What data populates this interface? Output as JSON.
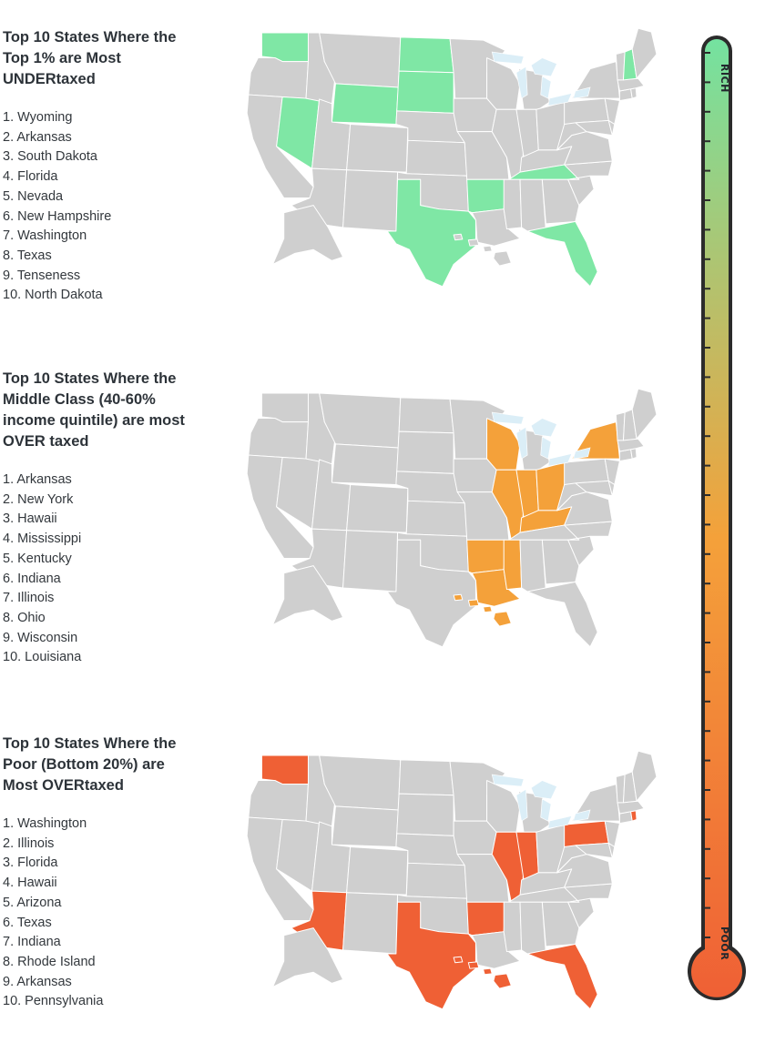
{
  "colors": {
    "land": "#cfcfcf",
    "border": "#ffffff",
    "lakes": "#dbeef7",
    "rich": "#7fe7a5",
    "middle": "#f4a13a",
    "poor": "#ef6035",
    "thermometer_top": "#74e2a0",
    "thermometer_mid": "#f4a13a",
    "thermometer_bottom": "#ef6035"
  },
  "thermometer": {
    "top_label": "RICH",
    "bottom_label": "POOR",
    "tick_count": 31
  },
  "sections": [
    {
      "title_lines": [
        "Top 10 States Where the",
        "Top 1% are Most",
        "UNDERtaxed"
      ],
      "list": [
        "1. Wyoming",
        "2. Arkansas",
        "3. South Dakota",
        "4. Florida",
        "5. Nevada",
        "6. New Hampshire",
        "7. Washington",
        "8. Texas",
        "9. Tenseness",
        "10. North Dakota"
      ],
      "highlight_color": "rich",
      "highlighted_states": [
        "WY",
        "AR",
        "SD",
        "FL",
        "NV",
        "NH",
        "WA",
        "TX",
        "TN",
        "ND"
      ]
    },
    {
      "title_lines": [
        "Top 10 States Where the",
        "Middle Class (40-60%",
        "income quintile) are most",
        "OVER taxed"
      ],
      "list": [
        "1. Arkansas",
        "2. New York",
        "3. Hawaii",
        "4. Mississippi",
        "5. Kentucky",
        "6. Indiana",
        "7. Illinois",
        "8. Ohio",
        "9. Wisconsin",
        "10. Louisiana"
      ],
      "highlight_color": "middle",
      "highlighted_states": [
        "AR",
        "NY",
        "HI",
        "MS",
        "KY",
        "IN",
        "IL",
        "OH",
        "WI",
        "LA"
      ]
    },
    {
      "title_lines": [
        "Top 10 States Where the",
        "Poor (Bottom 20%) are",
        "Most OVERtaxed"
      ],
      "list": [
        "1. Washington",
        "2. Illinois",
        "3. Florida",
        "4. Hawaii",
        "5. Arizona",
        "6. Texas",
        "7. Indiana",
        "8. Rhode Island",
        "9. Arkansas",
        "10. Pennsylvania"
      ],
      "highlight_color": "poor",
      "highlighted_states": [
        "WA",
        "IL",
        "FL",
        "HI",
        "AZ",
        "TX",
        "IN",
        "RI",
        "AR",
        "PA"
      ]
    }
  ]
}
